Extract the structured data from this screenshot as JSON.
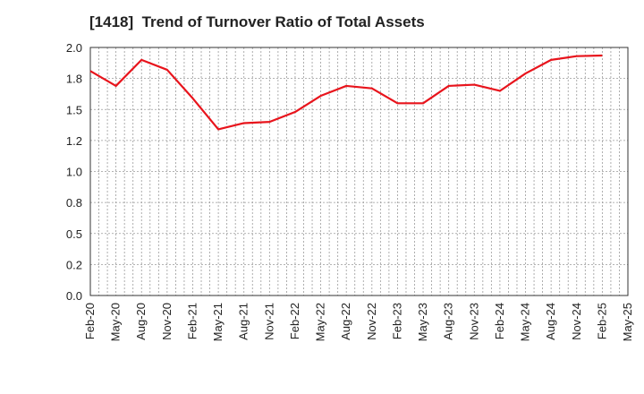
{
  "chart_data": {
    "type": "line",
    "title": "[1418]  Trend of Turnover Ratio of Total Assets",
    "xlabel": "",
    "ylabel": "",
    "ylim": [
      0,
      2.0
    ],
    "yticks": [
      0.0,
      0.25,
      0.5,
      0.75,
      1.0,
      1.25,
      1.5,
      1.75,
      2.0
    ],
    "ytick_labels": [
      "0.0",
      "0.2",
      "0.5",
      "0.8",
      "1.0",
      "1.2",
      "1.5",
      "1.8",
      "2.0"
    ],
    "xtick_labels": [
      "Feb-20",
      "May-20",
      "Aug-20",
      "Nov-20",
      "Feb-21",
      "May-21",
      "Aug-21",
      "Nov-21",
      "Feb-22",
      "May-22",
      "Aug-22",
      "Nov-22",
      "Feb-23",
      "May-23",
      "Aug-23",
      "Nov-23",
      "Feb-24",
      "May-24",
      "Aug-24",
      "Nov-24",
      "Feb-25",
      "May-25"
    ],
    "grid": true,
    "series": [
      {
        "color": "#e8141c",
        "values": [
          1.81,
          1.69,
          1.9,
          1.82,
          1.59,
          1.34,
          1.39,
          1.4,
          1.48,
          1.61,
          1.69,
          1.67,
          1.55,
          1.55,
          1.69,
          1.7,
          1.65,
          1.79,
          1.9,
          1.93,
          1.935
        ]
      }
    ]
  }
}
